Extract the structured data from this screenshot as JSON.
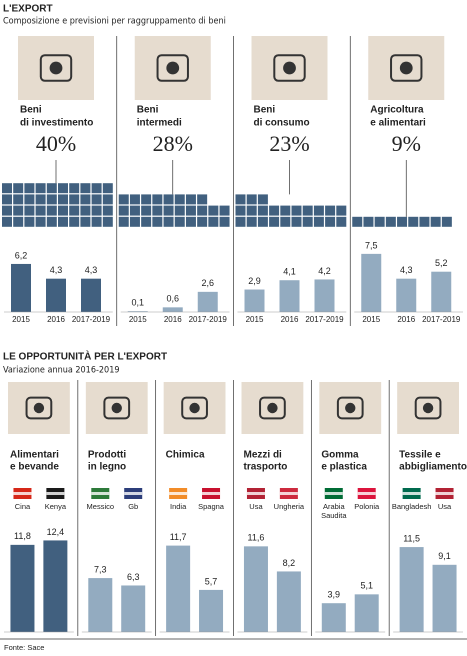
{
  "chart_data": [
    {
      "type": "bar",
      "title": "L'EXPORT",
      "subtitle": "Composizione e previsioni per raggruppamento di beni",
      "ylim": [
        0,
        8
      ],
      "panels": [
        {
          "title_lines": [
            "Beni",
            "di investimento"
          ],
          "share": 40,
          "share_label": "40%",
          "categories": [
            "2015",
            "2016",
            "2017-2019"
          ],
          "values": [
            6.2,
            4.3,
            4.3
          ],
          "value_labels": [
            "6,2",
            "4,3",
            "4,3"
          ],
          "color": "#41607f"
        },
        {
          "title_lines": [
            "Beni",
            "intermedi"
          ],
          "share": 28,
          "share_label": "28%",
          "categories": [
            "2015",
            "2016",
            "2017-2019"
          ],
          "values": [
            0.1,
            0.6,
            2.6
          ],
          "value_labels": [
            "0,1",
            "0,6",
            "2,6"
          ],
          "color": "#93abc0"
        },
        {
          "title_lines": [
            "Beni",
            "di consumo"
          ],
          "share": 23,
          "share_label": "23%",
          "categories": [
            "2015",
            "2016",
            "2017-2019"
          ],
          "values": [
            2.9,
            4.1,
            4.2
          ],
          "value_labels": [
            "2,9",
            "4,1",
            "4,2"
          ],
          "color": "#93abc0"
        },
        {
          "title_lines": [
            "Agricoltura",
            "e alimentari"
          ],
          "share": 9,
          "share_label": "9%",
          "categories": [
            "2015",
            "2016",
            "2017-2019"
          ],
          "values": [
            7.5,
            4.3,
            5.2
          ],
          "value_labels": [
            "7,5",
            "4,3",
            "5,2"
          ],
          "color": "#93abc0"
        }
      ]
    },
    {
      "type": "bar",
      "title": "LE OPPORTUNITÀ PER L'EXPORT",
      "subtitle": "Variazione annua 2016-2019",
      "ylim": [
        0,
        13
      ],
      "source": "Fonte: Sace",
      "panels": [
        {
          "title_lines": [
            "Alimentari",
            "e bevande"
          ],
          "categories": [
            "Cina",
            "Kenya"
          ],
          "values": [
            11.8,
            12.4
          ],
          "value_labels": [
            "11,8",
            "12,4"
          ],
          "color": "#41607f"
        },
        {
          "title_lines": [
            "Prodotti",
            "in legno"
          ],
          "categories": [
            "Messico",
            "Gb"
          ],
          "values": [
            7.3,
            6.3
          ],
          "value_labels": [
            "7,3",
            "6,3"
          ],
          "color": "#93abc0"
        },
        {
          "title_lines": [
            "Chimica"
          ],
          "categories": [
            "India",
            "Spagna"
          ],
          "values": [
            11.7,
            5.7
          ],
          "value_labels": [
            "11,7",
            "5,7"
          ],
          "color": "#93abc0"
        },
        {
          "title_lines": [
            "Mezzi di",
            "trasporto"
          ],
          "categories": [
            "Usa",
            "Ungheria"
          ],
          "values": [
            11.6,
            8.2
          ],
          "value_labels": [
            "11,6",
            "8,2"
          ],
          "color": "#93abc0"
        },
        {
          "title_lines": [
            "Gomma",
            "e plastica"
          ],
          "categories": [
            [
              "Arabia",
              "Saudita"
            ],
            "Polonia"
          ],
          "values": [
            3.9,
            5.1
          ],
          "value_labels": [
            "3,9",
            "5,1"
          ],
          "color": "#93abc0"
        },
        {
          "title_lines": [
            "Tessile e",
            "abbigliamento"
          ],
          "categories": [
            "Bangladesh",
            "Usa"
          ],
          "values": [
            11.5,
            9.1
          ],
          "value_labels": [
            "11,5",
            "9,1"
          ],
          "color": "#93abc0"
        }
      ]
    }
  ]
}
